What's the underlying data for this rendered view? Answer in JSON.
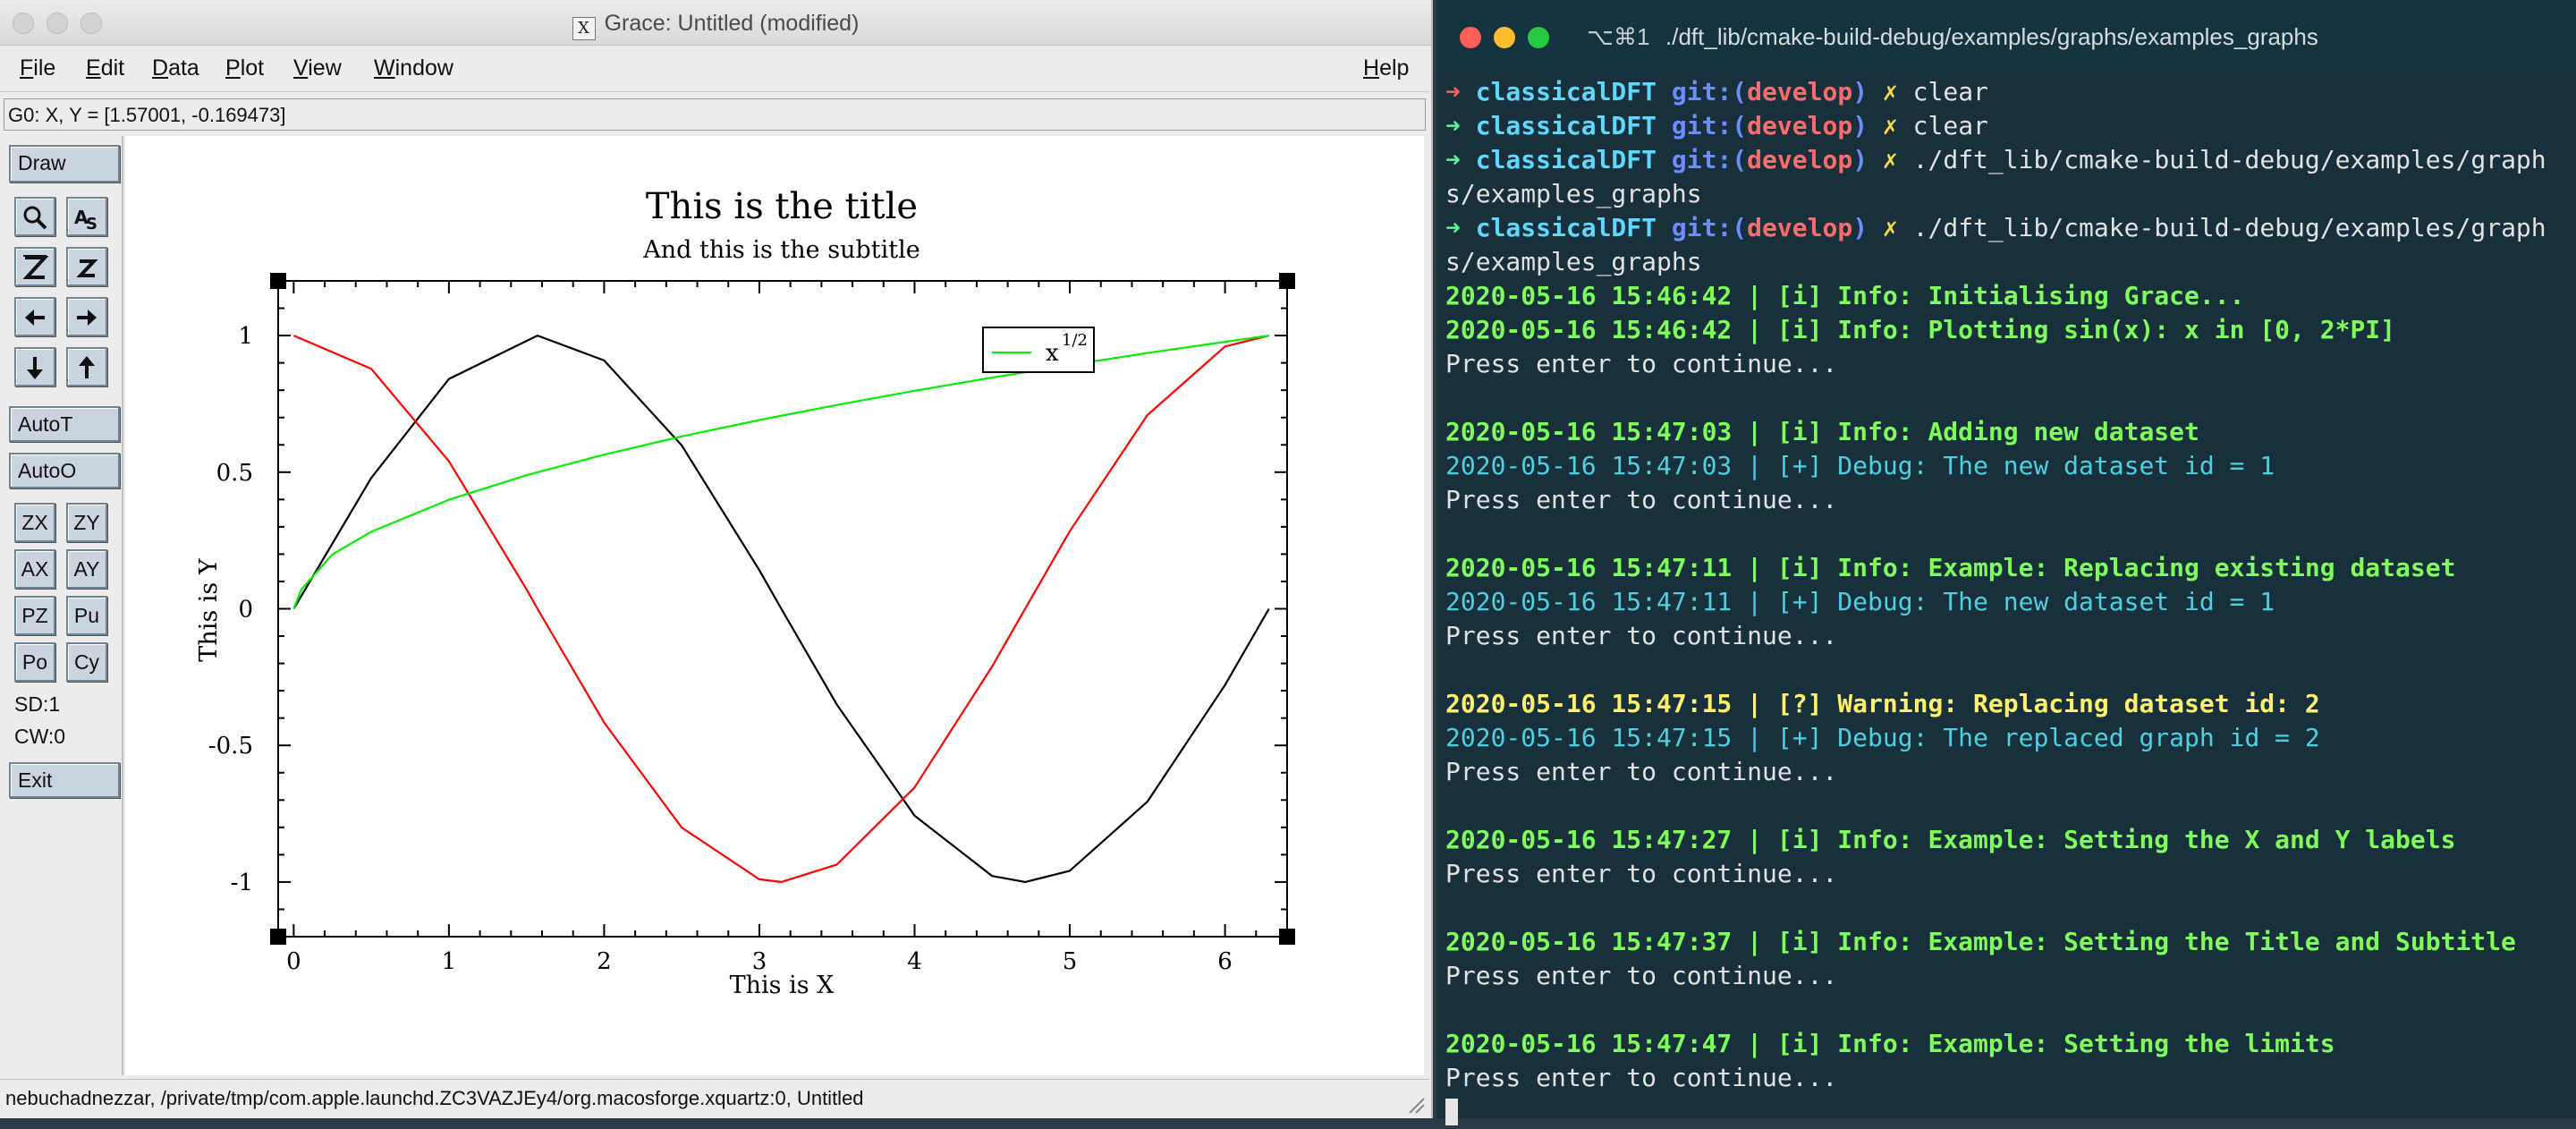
{
  "grace": {
    "window_title": "Grace: Untitled (modified)",
    "x11_glyph": "X",
    "menus": [
      "File",
      "Edit",
      "Data",
      "Plot",
      "View",
      "Window"
    ],
    "help_menu": "Help",
    "locator": "G0: X, Y = [1.57001, -0.169473]",
    "tools": {
      "draw": "Draw",
      "autot": "AutoT",
      "autoo": "AutoO",
      "zx": "ZX",
      "zy": "ZY",
      "ax": "AX",
      "ay": "AY",
      "pz": "PZ",
      "pu": "Pu",
      "po": "Po",
      "cy": "Cy",
      "sd": "SD:1",
      "cw": "CW:0",
      "exit": "Exit"
    },
    "icons": [
      "magnifier-icon",
      "text-as-icon",
      "zoom-z-icon",
      "zoom-small-z-icon",
      "arrow-left-icon",
      "arrow-right-icon",
      "arrow-down-icon",
      "arrow-up-icon"
    ],
    "status": "nebuchadnezzar, /private/tmp/com.apple.launchd.ZC3VAZJEy4/org.macosforge.xquartz:0, Untitled"
  },
  "chart_data": {
    "type": "line",
    "title": "This is the title",
    "subtitle": "And this is the subtitle",
    "xlabel": "This is X",
    "ylabel": "This is Y",
    "xlim": [
      -0.1,
      6.4
    ],
    "ylim": [
      -1.2,
      1.2
    ],
    "x_ticks": [
      "0",
      "1",
      "2",
      "3",
      "4",
      "5",
      "6"
    ],
    "y_ticks": [
      "-1",
      "-0.5",
      "0",
      "0.5",
      "1"
    ],
    "legend": {
      "label": "x",
      "superscript": "1/2",
      "placement": "top-right"
    },
    "series": [
      {
        "name": "",
        "color": "#000000",
        "x": [
          0,
          0.5,
          1,
          1.5708,
          2,
          2.5,
          3,
          3.1416,
          3.5,
          4,
          4.5,
          4.7124,
          5,
          5.5,
          6,
          6.2832
        ],
        "y": [
          0,
          0.479,
          0.841,
          1,
          0.909,
          0.598,
          0.141,
          0,
          -0.351,
          -0.757,
          -0.978,
          -1,
          -0.959,
          -0.706,
          -0.279,
          0
        ]
      },
      {
        "name": "",
        "color": "#ff0000",
        "x": [
          0,
          0.5,
          1,
          1.5,
          1.5708,
          2,
          2.5,
          3,
          3.1416,
          3.5,
          4,
          4.5,
          4.7124,
          5,
          5.5,
          6,
          6.2832
        ],
        "y": [
          1,
          0.878,
          0.54,
          0.071,
          0,
          -0.416,
          -0.801,
          -0.99,
          -1,
          -0.936,
          -0.654,
          -0.211,
          0,
          0.284,
          0.709,
          0.96,
          1
        ]
      },
      {
        "name": "x^1/2",
        "color": "#00ee00",
        "x": [
          0,
          0.05,
          0.25,
          0.5,
          1,
          1.5,
          2,
          2.5,
          3,
          3.5,
          4,
          4.5,
          5,
          5.5,
          6,
          6.2832
        ],
        "y": [
          0,
          0.071,
          0.199,
          0.282,
          0.399,
          0.489,
          0.564,
          0.631,
          0.691,
          0.746,
          0.798,
          0.846,
          0.892,
          0.936,
          0.977,
          1.0
        ]
      }
    ]
  },
  "terminal": {
    "shortcut": "⌥⌘1",
    "title": "./dft_lib/cmake-build-debug/examples/graphs/examples_graphs",
    "prompt": {
      "dir": "classicalDFT",
      "git": "git:(",
      "branch": "develop",
      "git_close": ")",
      "x": "✗"
    },
    "lines": [
      {
        "type": "prompt",
        "arrow": "red",
        "cmd": "clear"
      },
      {
        "type": "prompt",
        "arrow": "green",
        "cmd": "clear"
      },
      {
        "type": "prompt",
        "arrow": "green",
        "cmd": "./dft_lib/cmake-build-debug/examples/graphs/examples_graphs"
      },
      {
        "type": "prompt",
        "arrow": "green",
        "cmd": "./dft_lib/cmake-build-debug/examples/graphs/examples_graphs"
      },
      {
        "type": "info",
        "text": "2020-05-16 15:46:42 | [i] Info: Initialising Grace..."
      },
      {
        "type": "info",
        "text": "2020-05-16 15:46:42 | [i] Info: Plotting sin(x): x in [0, 2*PI]"
      },
      {
        "type": "plain",
        "text": "Press enter to continue..."
      },
      {
        "type": "blank",
        "text": ""
      },
      {
        "type": "info",
        "text": "2020-05-16 15:47:03 | [i] Info: Adding new dataset"
      },
      {
        "type": "debug",
        "text": "2020-05-16 15:47:03 | [+] Debug: The new dataset id = 1"
      },
      {
        "type": "plain",
        "text": "Press enter to continue..."
      },
      {
        "type": "blank",
        "text": ""
      },
      {
        "type": "info",
        "text": "2020-05-16 15:47:11 | [i] Info: Example: Replacing existing dataset"
      },
      {
        "type": "debug",
        "text": "2020-05-16 15:47:11 | [+] Debug: The new dataset id = 1"
      },
      {
        "type": "plain",
        "text": "Press enter to continue..."
      },
      {
        "type": "blank",
        "text": ""
      },
      {
        "type": "warn",
        "text": "2020-05-16 15:47:15 | [?] Warning: Replacing dataset id: 2"
      },
      {
        "type": "debug",
        "text": "2020-05-16 15:47:15 | [+] Debug: The replaced graph id = 2"
      },
      {
        "type": "plain",
        "text": "Press enter to continue..."
      },
      {
        "type": "blank",
        "text": ""
      },
      {
        "type": "info",
        "text": "2020-05-16 15:47:27 | [i] Info: Example: Setting the X and Y labels"
      },
      {
        "type": "plain",
        "text": "Press enter to continue..."
      },
      {
        "type": "blank",
        "text": ""
      },
      {
        "type": "info",
        "text": "2020-05-16 15:47:37 | [i] Info: Example: Setting the Title and Subtitle"
      },
      {
        "type": "plain",
        "text": "Press enter to continue..."
      },
      {
        "type": "blank",
        "text": ""
      },
      {
        "type": "info",
        "text": "2020-05-16 15:47:47 | [i] Info: Example: Setting the limits"
      },
      {
        "type": "plain",
        "text": "Press enter to continue..."
      }
    ]
  }
}
